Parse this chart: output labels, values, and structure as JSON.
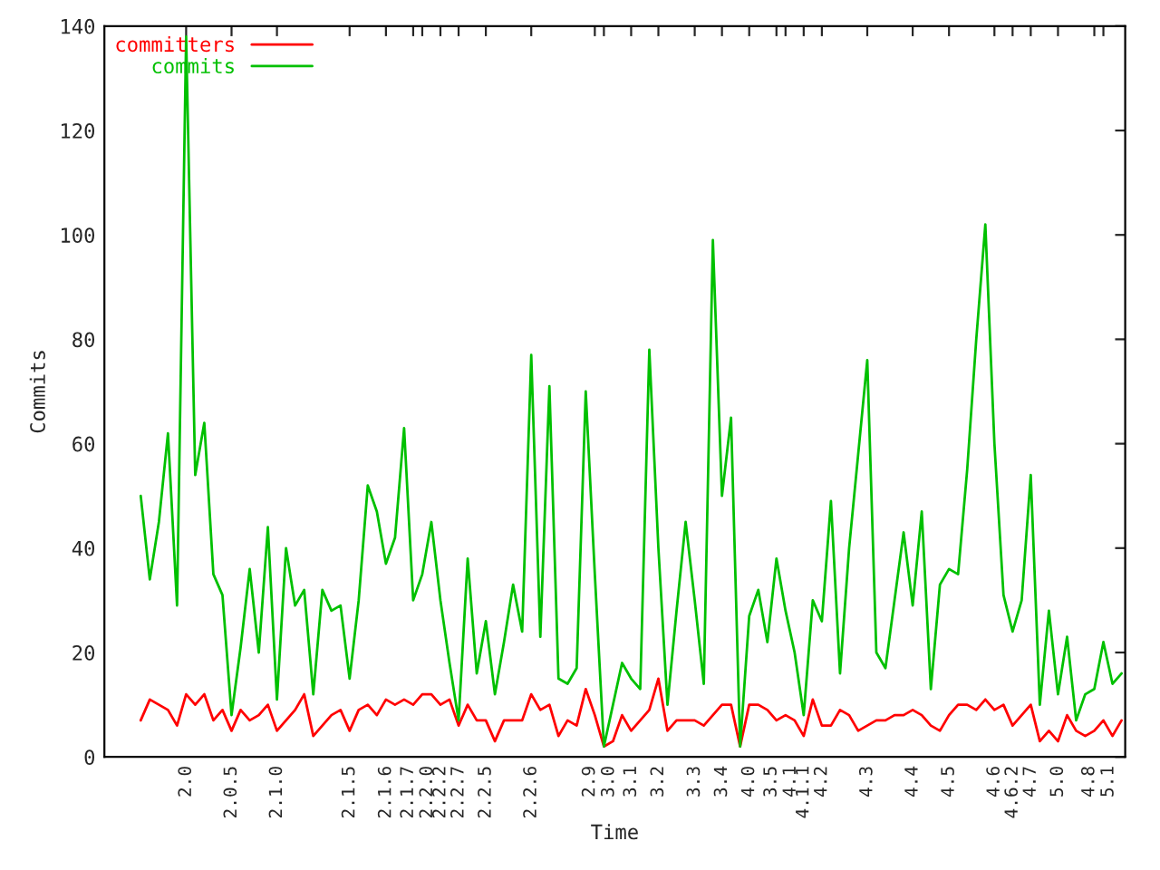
{
  "chart_data": {
    "type": "line",
    "xlabel": "Time",
    "ylabel": "Commits",
    "ylim": [
      0,
      140
    ],
    "yticks": [
      0,
      20,
      40,
      60,
      80,
      100,
      120,
      140
    ],
    "categories": [
      null,
      null,
      null,
      null,
      null,
      "2.0",
      null,
      null,
      null,
      null,
      "2.0.5",
      null,
      null,
      null,
      null,
      "2.1.0",
      null,
      null,
      null,
      null,
      null,
      null,
      null,
      "2.1.5",
      null,
      null,
      null,
      "2.1.6",
      null,
      null,
      "2.1.7",
      "2.2.0",
      null,
      "2.2.2",
      null,
      "2.2.7",
      null,
      null,
      "2.2.5",
      null,
      null,
      null,
      null,
      "2.2.6",
      null,
      null,
      null,
      null,
      null,
      null,
      "2.9",
      "3.0",
      null,
      null,
      "3.1",
      null,
      null,
      "3.2",
      null,
      null,
      null,
      "3.3",
      null,
      null,
      "3.4",
      null,
      null,
      "4.0",
      null,
      null,
      "3.5",
      "4.1",
      null,
      "4.1.1",
      null,
      "4.2",
      null,
      null,
      null,
      null,
      "4.3",
      null,
      null,
      null,
      null,
      "4.4",
      null,
      null,
      null,
      "4.5",
      null,
      null,
      null,
      null,
      "4.6",
      null,
      "4.6.2",
      null,
      "4.7",
      null,
      null,
      "5.0",
      null,
      null,
      null,
      "4.8",
      "5.1",
      null,
      null
    ],
    "grid": false,
    "legend": "top left",
    "series": [
      {
        "name": "committers",
        "color": "#ff0000",
        "values": [
          7,
          11,
          10,
          9,
          6,
          12,
          10,
          12,
          7,
          9,
          5,
          9,
          7,
          8,
          10,
          5,
          7,
          9,
          12,
          4,
          6,
          8,
          9,
          5,
          9,
          10,
          8,
          11,
          10,
          11,
          10,
          12,
          12,
          10,
          11,
          6,
          10,
          7,
          7,
          3,
          7,
          7,
          7,
          12,
          9,
          10,
          4,
          7,
          6,
          13,
          8,
          2,
          3,
          8,
          5,
          7,
          9,
          15,
          5,
          7,
          7,
          7,
          6,
          8,
          10,
          10,
          2,
          10,
          10,
          9,
          7,
          8,
          7,
          4,
          11,
          6,
          6,
          9,
          8,
          5,
          6,
          7,
          7,
          8,
          8,
          9,
          8,
          6,
          5,
          8,
          10,
          10,
          9,
          11,
          9,
          10,
          6,
          8,
          10,
          3,
          5,
          3,
          8,
          5,
          4,
          5,
          7,
          4,
          7
        ]
      },
      {
        "name": "commits",
        "color": "#00c000",
        "values": [
          50,
          34,
          45,
          62,
          29,
          138,
          54,
          64,
          35,
          31,
          8,
          21,
          36,
          20,
          44,
          11,
          40,
          29,
          32,
          12,
          32,
          28,
          29,
          15,
          30,
          52,
          47,
          37,
          42,
          63,
          30,
          35,
          45,
          30,
          18,
          7,
          38,
          16,
          26,
          12,
          22,
          33,
          24,
          77,
          23,
          71,
          15,
          14,
          17,
          70,
          35,
          2,
          10,
          18,
          15,
          13,
          78,
          40,
          10,
          28,
          45,
          30,
          14,
          99,
          50,
          65,
          2,
          27,
          32,
          22,
          38,
          28,
          20,
          8,
          30,
          26,
          49,
          16,
          40,
          58,
          76,
          20,
          17,
          30,
          43,
          29,
          47,
          13,
          33,
          36,
          35,
          55,
          80,
          102,
          60,
          31,
          24,
          30,
          54,
          10,
          28,
          12,
          23,
          7,
          12,
          13,
          22,
          14,
          16
        ]
      }
    ]
  }
}
